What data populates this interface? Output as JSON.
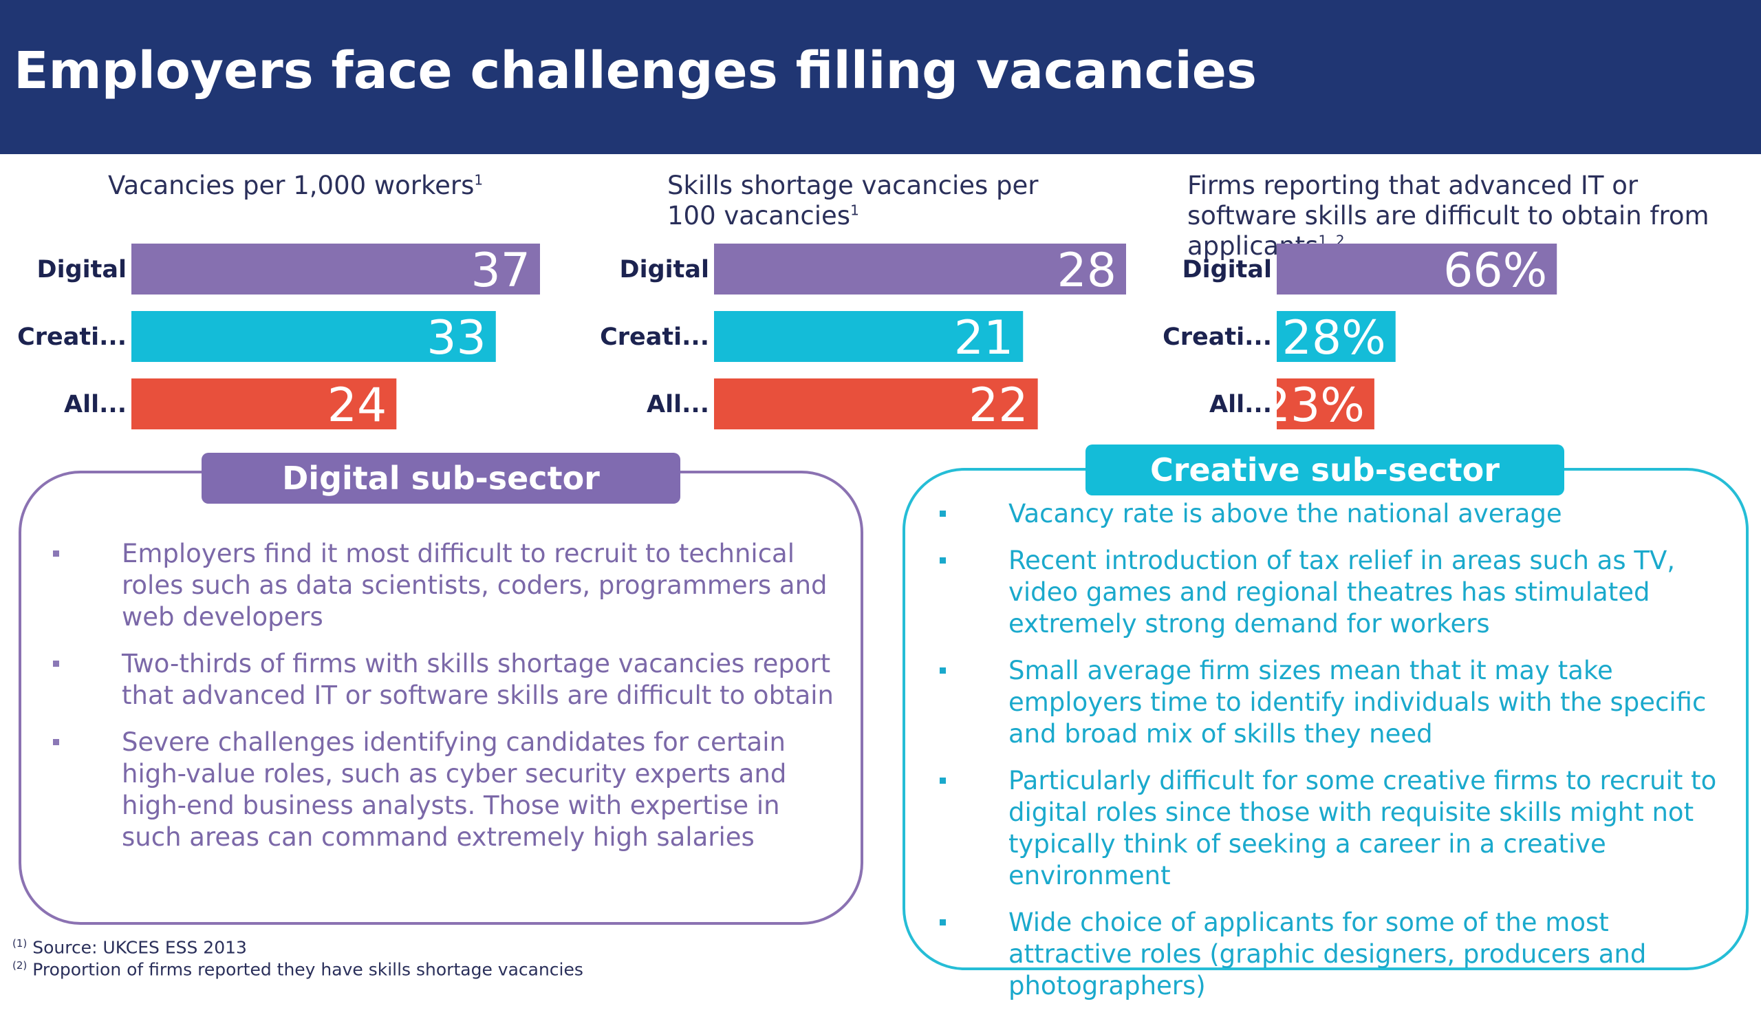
{
  "title": "Employers face challenges filling vacancies",
  "chart_data": [
    {
      "type": "bar",
      "orientation": "horizontal",
      "title": "Vacancies per 1,000 workers",
      "title_sup": "1",
      "categories": [
        "Digital",
        "Creati...",
        "All..."
      ],
      "values": [
        37,
        33,
        24
      ],
      "labels": [
        "37",
        "33",
        "24"
      ],
      "colors": [
        "#8670b0",
        "#14bcd8",
        "#e8503c"
      ],
      "xlim": [
        0,
        37
      ]
    },
    {
      "type": "bar",
      "orientation": "horizontal",
      "title": "Skills shortage vacancies per 100 vacancies",
      "title_sup": "1",
      "categories": [
        "Digital",
        "Creati...",
        "All..."
      ],
      "values": [
        28,
        21,
        22
      ],
      "labels": [
        "28",
        "21",
        "22"
      ],
      "colors": [
        "#8670b0",
        "#14bcd8",
        "#e8503c"
      ],
      "xlim": [
        0,
        28
      ]
    },
    {
      "type": "bar",
      "orientation": "horizontal",
      "title": "Firms reporting that advanced IT or software skills are difficult to obtain from applicants",
      "title_sup": "1, 2",
      "categories": [
        "Digital",
        "Creati...",
        "All..."
      ],
      "values": [
        66,
        28,
        23
      ],
      "labels": [
        "66%",
        "28%",
        "23%"
      ],
      "colors": [
        "#8670b0",
        "#14bcd8",
        "#e8503c"
      ],
      "xlim": [
        0,
        100
      ]
    }
  ],
  "digital_box": {
    "heading": "Digital sub-sector",
    "bullets": [
      "Employers find it most difficult to recruit to technical roles such as data scientists, coders, programmers and web developers",
      "Two-thirds of firms with skills shortage vacancies report that advanced IT or software skills are difficult to obtain",
      "Severe challenges identifying candidates for certain high-value roles, such as cyber security experts and high-end business analysts. Those with expertise in such areas can command extremely high salaries"
    ]
  },
  "creative_box": {
    "heading": "Creative sub-sector",
    "bullets": [
      "Vacancy rate is above the national average",
      "Recent introduction of tax relief in areas such as TV, video games and regional theatres has stimulated extremely strong demand for workers",
      "Small average firm sizes mean that it may take employers time to identify individuals with the specific and broad mix of skills they need",
      "Particularly difficult for some creative firms to recruit to digital roles since those with requisite skills might not typically think of seeking a career in a creative environment",
      "Wide choice of applicants for some of the most attractive roles (graphic designers, producers and photographers)"
    ]
  },
  "footnotes": [
    {
      "mark": "(1)",
      "text": "Source: UKCES ESS 2013"
    },
    {
      "mark": "(2)",
      "text": "Proportion of firms reported they have skills shortage vacancies"
    }
  ]
}
